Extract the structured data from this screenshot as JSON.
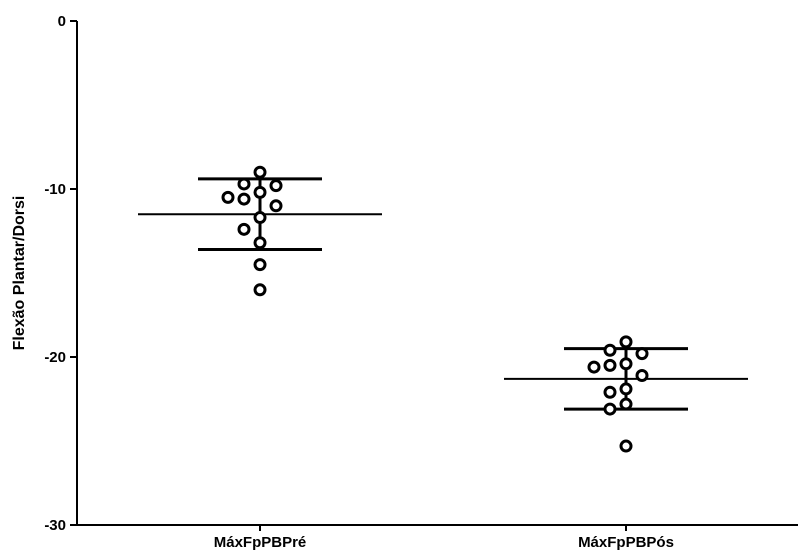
{
  "chart_data": {
    "type": "scatter",
    "title": "",
    "xlabel": "",
    "ylabel": "Flexão Plantar/Dorsi",
    "ylim": [
      -30,
      0
    ],
    "yticks": [
      0,
      -10,
      -20,
      -30
    ],
    "grid": false,
    "categories": [
      "MáxFpPBPré",
      "MáxFpPBPós"
    ],
    "groups": [
      {
        "category": "MáxFpPBPré",
        "values": [
          -9.0,
          -9.7,
          -9.8,
          -10.2,
          -10.5,
          -10.6,
          -11.0,
          -11.7,
          -12.4,
          -13.2,
          -14.5,
          -16.0
        ],
        "mean": -11.5,
        "sd_upper": -9.4,
        "sd_lower": -13.6
      },
      {
        "category": "MáxFpPBPós",
        "values": [
          -19.1,
          -19.6,
          -19.8,
          -20.4,
          -20.5,
          -20.6,
          -21.1,
          -21.9,
          -22.1,
          -22.8,
          -23.1,
          -25.3
        ],
        "mean": -21.3,
        "sd_upper": -19.5,
        "sd_lower": -23.1
      }
    ]
  }
}
